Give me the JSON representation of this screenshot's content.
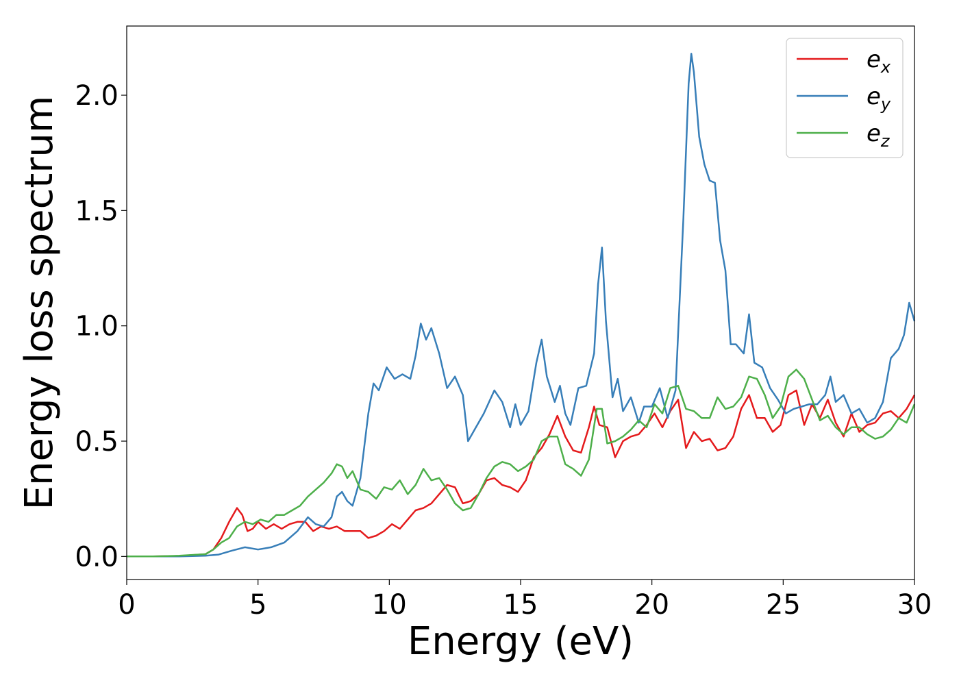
{
  "chart_data": {
    "type": "line",
    "xlabel": "Energy (eV)",
    "ylabel": "Energy loss spectrum",
    "xlim": [
      0,
      30
    ],
    "ylim": [
      -0.1,
      2.3
    ],
    "xticks": [
      0,
      5,
      10,
      15,
      20,
      25,
      30
    ],
    "xtick_labels": [
      "0",
      "5",
      "10",
      "15",
      "20",
      "25",
      "30"
    ],
    "yticks": [
      0.0,
      0.5,
      1.0,
      1.5,
      2.0
    ],
    "ytick_labels": [
      "0.0",
      "0.5",
      "1.0",
      "1.5",
      "2.0"
    ],
    "grid": false,
    "legend_position": "top-right",
    "series": [
      {
        "name": "e_x",
        "legend_base": "e",
        "legend_sub": "x",
        "color": "#e41a1c",
        "x": [
          0,
          1,
          2,
          3,
          3.3,
          3.6,
          3.9,
          4.2,
          4.4,
          4.6,
          4.8,
          5.0,
          5.3,
          5.6,
          5.9,
          6.2,
          6.5,
          6.8,
          7.1,
          7.4,
          7.7,
          8.0,
          8.3,
          8.6,
          8.9,
          9.2,
          9.5,
          9.8,
          10.1,
          10.4,
          10.7,
          11.0,
          11.3,
          11.6,
          11.9,
          12.2,
          12.5,
          12.8,
          13.1,
          13.4,
          13.7,
          14.0,
          14.3,
          14.6,
          14.9,
          15.2,
          15.5,
          15.8,
          16.1,
          16.4,
          16.7,
          17.0,
          17.3,
          17.6,
          17.8,
          18.0,
          18.3,
          18.6,
          18.9,
          19.2,
          19.5,
          19.8,
          20.1,
          20.4,
          20.7,
          21.0,
          21.3,
          21.6,
          21.9,
          22.2,
          22.5,
          22.8,
          23.1,
          23.4,
          23.7,
          24.0,
          24.3,
          24.6,
          24.9,
          25.2,
          25.5,
          25.8,
          26.1,
          26.4,
          26.7,
          27.0,
          27.3,
          27.6,
          27.9,
          28.2,
          28.5,
          28.8,
          29.1,
          29.4,
          29.7,
          30.0
        ],
        "values": [
          0.0,
          0.0,
          0.002,
          0.01,
          0.03,
          0.08,
          0.15,
          0.21,
          0.18,
          0.11,
          0.12,
          0.15,
          0.12,
          0.14,
          0.12,
          0.14,
          0.15,
          0.15,
          0.11,
          0.13,
          0.12,
          0.13,
          0.11,
          0.11,
          0.11,
          0.08,
          0.09,
          0.11,
          0.14,
          0.12,
          0.16,
          0.2,
          0.21,
          0.23,
          0.27,
          0.31,
          0.3,
          0.23,
          0.24,
          0.27,
          0.33,
          0.34,
          0.31,
          0.3,
          0.28,
          0.33,
          0.43,
          0.47,
          0.53,
          0.61,
          0.52,
          0.46,
          0.45,
          0.56,
          0.65,
          0.57,
          0.56,
          0.43,
          0.5,
          0.52,
          0.53,
          0.57,
          0.62,
          0.56,
          0.63,
          0.68,
          0.47,
          0.54,
          0.5,
          0.51,
          0.46,
          0.47,
          0.52,
          0.64,
          0.7,
          0.6,
          0.6,
          0.54,
          0.57,
          0.7,
          0.72,
          0.57,
          0.66,
          0.6,
          0.68,
          0.58,
          0.52,
          0.62,
          0.54,
          0.57,
          0.58,
          0.62,
          0.63,
          0.6,
          0.64,
          0.7
        ]
      },
      {
        "name": "e_y",
        "legend_base": "e",
        "legend_sub": "y",
        "color": "#377eb8",
        "x": [
          0,
          1,
          2,
          3,
          3.5,
          4.0,
          4.5,
          5.0,
          5.5,
          6.0,
          6.5,
          6.9,
          7.2,
          7.5,
          7.8,
          8.0,
          8.2,
          8.4,
          8.6,
          8.9,
          9.2,
          9.4,
          9.6,
          9.9,
          10.2,
          10.5,
          10.8,
          11.0,
          11.2,
          11.4,
          11.6,
          11.9,
          12.2,
          12.5,
          12.8,
          13.0,
          13.3,
          13.6,
          14.0,
          14.3,
          14.6,
          14.8,
          15.0,
          15.3,
          15.6,
          15.8,
          16.0,
          16.3,
          16.5,
          16.7,
          16.9,
          17.2,
          17.5,
          17.8,
          17.95,
          18.1,
          18.25,
          18.5,
          18.7,
          18.9,
          19.2,
          19.5,
          19.7,
          20.0,
          20.3,
          20.6,
          20.9,
          21.2,
          21.4,
          21.5,
          21.6,
          21.8,
          22.0,
          22.2,
          22.4,
          22.6,
          22.8,
          23.0,
          23.2,
          23.5,
          23.7,
          23.9,
          24.2,
          24.5,
          24.8,
          25.1,
          25.4,
          25.7,
          26.0,
          26.3,
          26.6,
          26.8,
          27.0,
          27.3,
          27.6,
          27.9,
          28.2,
          28.5,
          28.8,
          29.1,
          29.4,
          29.6,
          29.8,
          30.0
        ],
        "values": [
          0.0,
          0.0,
          0.0,
          0.003,
          0.008,
          0.025,
          0.04,
          0.03,
          0.04,
          0.06,
          0.11,
          0.17,
          0.14,
          0.13,
          0.17,
          0.26,
          0.28,
          0.24,
          0.22,
          0.34,
          0.62,
          0.75,
          0.72,
          0.82,
          0.77,
          0.79,
          0.77,
          0.87,
          1.01,
          0.94,
          0.99,
          0.88,
          0.73,
          0.78,
          0.7,
          0.5,
          0.56,
          0.62,
          0.72,
          0.67,
          0.56,
          0.66,
          0.57,
          0.63,
          0.84,
          0.94,
          0.78,
          0.67,
          0.74,
          0.62,
          0.57,
          0.73,
          0.74,
          0.88,
          1.18,
          1.34,
          1.02,
          0.69,
          0.77,
          0.63,
          0.69,
          0.58,
          0.65,
          0.65,
          0.73,
          0.6,
          0.72,
          1.47,
          2.05,
          2.18,
          2.1,
          1.82,
          1.7,
          1.63,
          1.62,
          1.37,
          1.24,
          0.92,
          0.92,
          0.88,
          1.05,
          0.84,
          0.82,
          0.73,
          0.68,
          0.62,
          0.64,
          0.65,
          0.66,
          0.66,
          0.7,
          0.78,
          0.67,
          0.7,
          0.62,
          0.64,
          0.58,
          0.6,
          0.67,
          0.86,
          0.9,
          0.96,
          1.1,
          1.02
        ]
      },
      {
        "name": "e_z",
        "legend_base": "e",
        "legend_sub": "z",
        "color": "#4daf4a",
        "x": [
          0,
          1,
          2,
          3,
          3.3,
          3.6,
          3.9,
          4.2,
          4.5,
          4.8,
          5.1,
          5.4,
          5.7,
          6.0,
          6.3,
          6.6,
          6.9,
          7.2,
          7.5,
          7.8,
          8.0,
          8.2,
          8.4,
          8.6,
          8.9,
          9.2,
          9.5,
          9.8,
          10.1,
          10.4,
          10.7,
          11.0,
          11.3,
          11.6,
          11.9,
          12.2,
          12.5,
          12.8,
          13.1,
          13.4,
          13.7,
          14.0,
          14.3,
          14.6,
          14.9,
          15.2,
          15.5,
          15.8,
          16.1,
          16.4,
          16.7,
          17.0,
          17.3,
          17.6,
          17.9,
          18.1,
          18.3,
          18.6,
          18.9,
          19.2,
          19.5,
          19.8,
          20.1,
          20.4,
          20.7,
          21.0,
          21.3,
          21.6,
          21.9,
          22.2,
          22.5,
          22.8,
          23.1,
          23.4,
          23.7,
          24.0,
          24.3,
          24.6,
          24.9,
          25.2,
          25.5,
          25.8,
          26.1,
          26.4,
          26.7,
          27.0,
          27.3,
          27.6,
          27.9,
          28.2,
          28.5,
          28.8,
          29.1,
          29.4,
          29.7,
          30.0
        ],
        "values": [
          0.0,
          0.0,
          0.003,
          0.01,
          0.03,
          0.06,
          0.08,
          0.13,
          0.15,
          0.14,
          0.16,
          0.15,
          0.18,
          0.18,
          0.2,
          0.22,
          0.26,
          0.29,
          0.32,
          0.36,
          0.4,
          0.39,
          0.34,
          0.37,
          0.29,
          0.28,
          0.25,
          0.3,
          0.29,
          0.33,
          0.27,
          0.31,
          0.38,
          0.33,
          0.34,
          0.29,
          0.23,
          0.2,
          0.21,
          0.27,
          0.34,
          0.39,
          0.41,
          0.4,
          0.37,
          0.39,
          0.42,
          0.5,
          0.52,
          0.52,
          0.4,
          0.38,
          0.35,
          0.42,
          0.64,
          0.64,
          0.49,
          0.5,
          0.52,
          0.55,
          0.59,
          0.56,
          0.66,
          0.62,
          0.73,
          0.74,
          0.64,
          0.63,
          0.6,
          0.6,
          0.69,
          0.64,
          0.65,
          0.69,
          0.78,
          0.77,
          0.7,
          0.6,
          0.65,
          0.78,
          0.81,
          0.77,
          0.68,
          0.59,
          0.61,
          0.56,
          0.53,
          0.56,
          0.56,
          0.53,
          0.51,
          0.52,
          0.55,
          0.6,
          0.58,
          0.66
        ]
      }
    ]
  }
}
